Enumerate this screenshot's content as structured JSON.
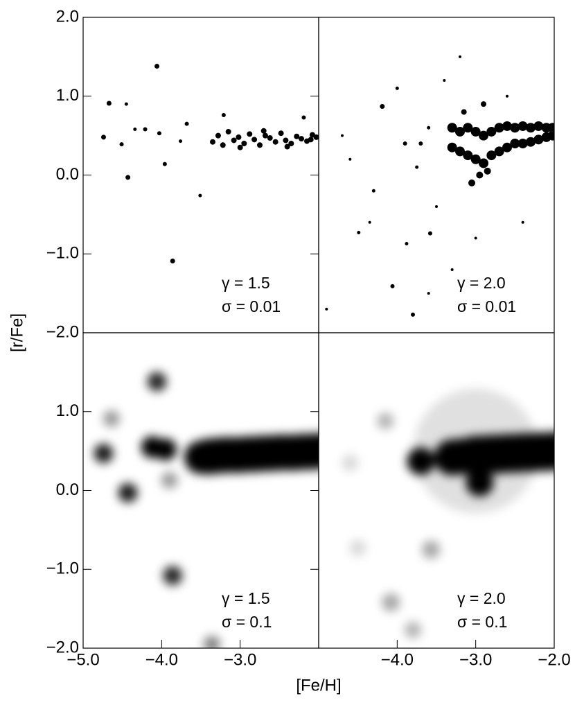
{
  "axis_labels": {
    "x": "[Fe/H]",
    "y": "[r/Fe]"
  },
  "chart_data": [
    {
      "type": "scatter",
      "annotations": [
        "γ = 1.5",
        "σ = 0.01"
      ],
      "xlim": [
        -5.0,
        -2.0
      ],
      "ylim": [
        -2.0,
        2.0
      ],
      "yticks": [
        {
          "value": -2.0,
          "label": "−2.0"
        },
        {
          "value": -1.0,
          "label": "−1.0"
        },
        {
          "value": 0.0,
          "label": "0.0"
        },
        {
          "value": 1.0,
          "label": "1.0"
        },
        {
          "value": 2.0,
          "label": "2.0"
        }
      ],
      "x": [
        -4.74,
        -4.67,
        -4.51,
        -4.45,
        -4.43,
        -4.06,
        -4.21,
        -4.34,
        -4.03,
        -3.96,
        -3.86,
        -3.76,
        -3.68,
        -3.51,
        -3.21,
        -2.19,
        -3.35,
        -3.28,
        -3.22,
        -3.15,
        -3.08,
        -3.02,
        -2.95,
        -2.88,
        -2.82,
        -2.75,
        -2.68,
        -2.62,
        -2.55,
        -2.48,
        -2.42,
        -2.35,
        -2.28,
        -2.22,
        -2.15,
        -2.08,
        -2.03,
        -3.0,
        -2.7,
        -2.4,
        -2.1
      ],
      "y": [
        0.48,
        0.91,
        0.39,
        0.9,
        -0.03,
        1.38,
        0.58,
        0.58,
        0.53,
        0.14,
        -1.09,
        0.43,
        0.65,
        -0.26,
        0.76,
        0.73,
        0.42,
        0.5,
        0.38,
        0.55,
        0.44,
        0.48,
        0.4,
        0.52,
        0.45,
        0.38,
        0.5,
        0.47,
        0.42,
        0.53,
        0.44,
        0.4,
        0.49,
        0.46,
        0.43,
        0.51,
        0.48,
        0.35,
        0.56,
        0.36,
        0.45
      ],
      "size": [
        3.5,
        3.5,
        3,
        2.5,
        3.5,
        3.5,
        3,
        2.5,
        3,
        3,
        3.5,
        2.5,
        3,
        2.5,
        3,
        3,
        4,
        4,
        4,
        4,
        4,
        4,
        4,
        4,
        4,
        4,
        4,
        4,
        4,
        4,
        4,
        4,
        4,
        4,
        4,
        4,
        4,
        4,
        4,
        4,
        4
      ]
    },
    {
      "type": "scatter",
      "annotations": [
        "γ = 2.0",
        "σ = 0.01"
      ],
      "xlim": [
        -5.0,
        -2.0
      ],
      "ylim": [
        -2.0,
        2.0
      ],
      "x": [
        -3.3,
        -3.2,
        -3.1,
        -3.0,
        -2.9,
        -2.8,
        -2.7,
        -2.6,
        -2.5,
        -2.4,
        -2.3,
        -2.2,
        -2.1,
        -2.02,
        -3.3,
        -3.2,
        -3.1,
        -3.0,
        -2.9,
        -2.8,
        -2.7,
        -2.6,
        -2.5,
        -2.4,
        -2.3,
        -2.2,
        -2.1,
        -2.02,
        -3.05,
        -2.95,
        -2.85,
        -3.15,
        -2.9,
        -4.19,
        -4.06,
        -3.8,
        -3.88,
        -4.49,
        -3.58,
        -4.3,
        -3.7,
        -3.9,
        -3.6,
        -3.5,
        -4.7,
        -4.0,
        -3.4,
        -3.3,
        -3.6,
        -4.9,
        -3.2,
        -2.6,
        -2.4,
        -3.0,
        -4.6,
        -4.35,
        -3.75
      ],
      "y": [
        0.35,
        0.3,
        0.25,
        0.2,
        0.15,
        0.25,
        0.3,
        0.35,
        0.4,
        0.4,
        0.42,
        0.45,
        0.48,
        0.5,
        0.6,
        0.55,
        0.6,
        0.55,
        0.5,
        0.55,
        0.6,
        0.62,
        0.6,
        0.62,
        0.6,
        0.62,
        0.6,
        0.6,
        -0.1,
        0.0,
        0.05,
        0.8,
        0.9,
        0.87,
        -1.41,
        -1.77,
        -0.87,
        -0.73,
        -0.74,
        -0.2,
        0.4,
        0.4,
        0.6,
        -0.4,
        0.5,
        1.1,
        1.2,
        -1.2,
        -1.5,
        -1.7,
        1.5,
        1.0,
        -0.6,
        -0.8,
        0.2,
        -0.6,
        0.1
      ],
      "size": [
        7,
        7,
        7,
        7,
        7,
        7,
        7,
        7,
        7,
        7,
        7,
        7,
        7,
        7,
        7,
        7,
        7,
        7,
        7,
        7,
        7,
        7,
        7,
        7,
        7,
        7,
        7,
        7,
        5,
        5,
        5,
        4,
        4,
        3.5,
        3,
        3,
        2.5,
        2.5,
        3,
        2.5,
        3,
        3,
        2.5,
        2,
        2,
        2.5,
        2,
        2,
        2,
        2,
        2,
        2,
        2,
        2,
        2,
        2,
        2.5
      ]
    },
    {
      "type": "blur",
      "annotations": [
        "γ = 1.5",
        "σ = 0.1"
      ],
      "xlim": [
        -5.0,
        -2.0
      ],
      "ylim": [
        -2.0,
        2.0
      ],
      "yticks": [
        {
          "value": -2.0,
          "label": "−2.0"
        },
        {
          "value": -1.0,
          "label": "−1.0"
        },
        {
          "value": 0.0,
          "label": "0.0"
        },
        {
          "value": 1.0,
          "label": "1.0"
        }
      ],
      "xticks": [
        {
          "value": -5.0,
          "label": "−5.0"
        },
        {
          "value": -4.0,
          "label": "−4.0"
        },
        {
          "value": -3.0,
          "label": "−3.0"
        }
      ],
      "x": [
        -4.74,
        -4.43,
        -4.06,
        -3.86,
        -4.64,
        -3.9,
        -3.36,
        -4.12,
        -3.95,
        -3.5,
        -3.4,
        -3.3,
        -3.2,
        -3.1,
        -3.0,
        -2.9,
        -2.8,
        -2.7,
        -2.6,
        -2.5,
        -2.4,
        -2.3,
        -2.2,
        -2.1,
        -2.0
      ],
      "y": [
        0.47,
        -0.03,
        1.38,
        -1.08,
        0.91,
        0.13,
        -1.95,
        0.55,
        0.52,
        0.42,
        0.43,
        0.44,
        0.45,
        0.45,
        0.45,
        0.46,
        0.46,
        0.47,
        0.47,
        0.48,
        0.48,
        0.48,
        0.49,
        0.49,
        0.5
      ],
      "size": [
        14,
        14,
        14,
        14,
        12,
        12,
        12,
        16,
        16,
        24,
        26,
        26,
        26,
        26,
        26,
        26,
        26,
        26,
        26,
        26,
        26,
        26,
        26,
        26,
        26
      ],
      "opacity": [
        0.9,
        0.9,
        0.85,
        0.85,
        0.4,
        0.4,
        0.5,
        1,
        1,
        1,
        1,
        1,
        1,
        1,
        1,
        1,
        1,
        1,
        1,
        1,
        1,
        1,
        1,
        1,
        1
      ]
    },
    {
      "type": "blur",
      "annotations": [
        "γ = 2.0",
        "σ = 0.1"
      ],
      "xlim": [
        -5.0,
        -2.0
      ],
      "ylim": [
        -2.0,
        2.0
      ],
      "xticks": [
        {
          "value": -4.0,
          "label": "−4.0"
        },
        {
          "value": -3.0,
          "label": "−3.0"
        },
        {
          "value": -2.0,
          "label": "−2.0"
        }
      ],
      "x": [
        -3.0,
        -3.3,
        -3.2,
        -3.1,
        -3.0,
        -2.9,
        -2.8,
        -2.7,
        -2.6,
        -2.5,
        -2.4,
        -2.3,
        -2.2,
        -2.1,
        -2.0,
        -3.7,
        -2.95,
        -4.15,
        -4.08,
        -3.8,
        -3.57,
        -4.5,
        -4.6
      ],
      "y": [
        0.5,
        0.42,
        0.43,
        0.44,
        0.45,
        0.45,
        0.46,
        0.46,
        0.47,
        0.47,
        0.48,
        0.48,
        0.49,
        0.49,
        0.5,
        0.37,
        0.1,
        0.88,
        -1.42,
        -1.77,
        -0.75,
        -0.73,
        0.35
      ],
      "size": [
        90,
        26,
        26,
        26,
        28,
        28,
        28,
        28,
        28,
        28,
        28,
        28,
        28,
        28,
        28,
        20,
        20,
        12,
        13,
        12,
        13,
        12,
        12
      ],
      "opacity": [
        0.12,
        1,
        1,
        1,
        1,
        1,
        1,
        1,
        1,
        1,
        1,
        1,
        1,
        1,
        1,
        1,
        1,
        0.3,
        0.35,
        0.3,
        0.35,
        0.15,
        0.15
      ]
    }
  ]
}
